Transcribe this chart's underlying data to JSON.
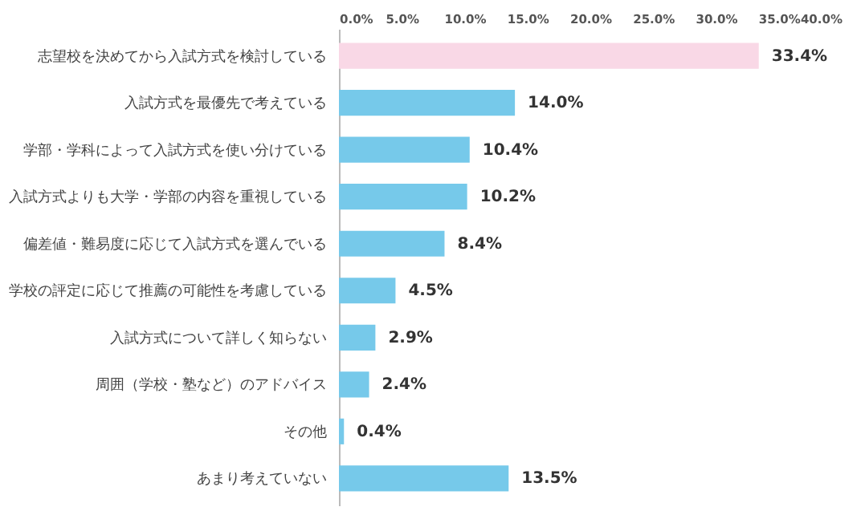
{
  "chart_data": {
    "type": "bar",
    "orientation": "horizontal",
    "categories": [
      "志望校を決めてから入試方式を検討している",
      "入試方式を最優先で考えている",
      "学部・学科によって入試方式を使い分けている",
      "入試方式よりも大学・学部の内容を重視している",
      "偏差値・難易度に応じて入試方式を選んでいる",
      "学校の評定に応じて推薦の可能性を考慮している",
      "入試方式について詳しく知らない",
      "周囲（学校・塾など）のアドバイス",
      "その他",
      "あまり考えていない"
    ],
    "values": [
      33.4,
      14.0,
      10.4,
      10.2,
      8.4,
      4.5,
      2.9,
      2.4,
      0.4,
      13.5
    ],
    "colors": [
      "#f9d8e6",
      "#76c9ea",
      "#76c9ea",
      "#76c9ea",
      "#76c9ea",
      "#76c9ea",
      "#76c9ea",
      "#76c9ea",
      "#76c9ea",
      "#76c9ea"
    ],
    "value_labels": [
      "33.4%",
      "14.0%",
      "10.4%",
      "10.2%",
      "8.4%",
      "4.5%",
      "2.9%",
      "2.4%",
      "0.4%",
      "13.5%"
    ],
    "xlim": [
      0,
      40
    ],
    "xticks": [
      {
        "value": 0,
        "label": "0.0%"
      },
      {
        "value": 5,
        "label": "5.0%"
      },
      {
        "value": 10,
        "label": "10.0%"
      },
      {
        "value": 15,
        "label": "15.0%"
      },
      {
        "value": 20,
        "label": "20.0%"
      },
      {
        "value": 25,
        "label": "25.0%"
      },
      {
        "value": 30,
        "label": "30.0%"
      },
      {
        "value": 35,
        "label": "35.0%"
      },
      {
        "value": 40,
        "label": "40.0%"
      }
    ],
    "grid": false,
    "legend": false
  }
}
